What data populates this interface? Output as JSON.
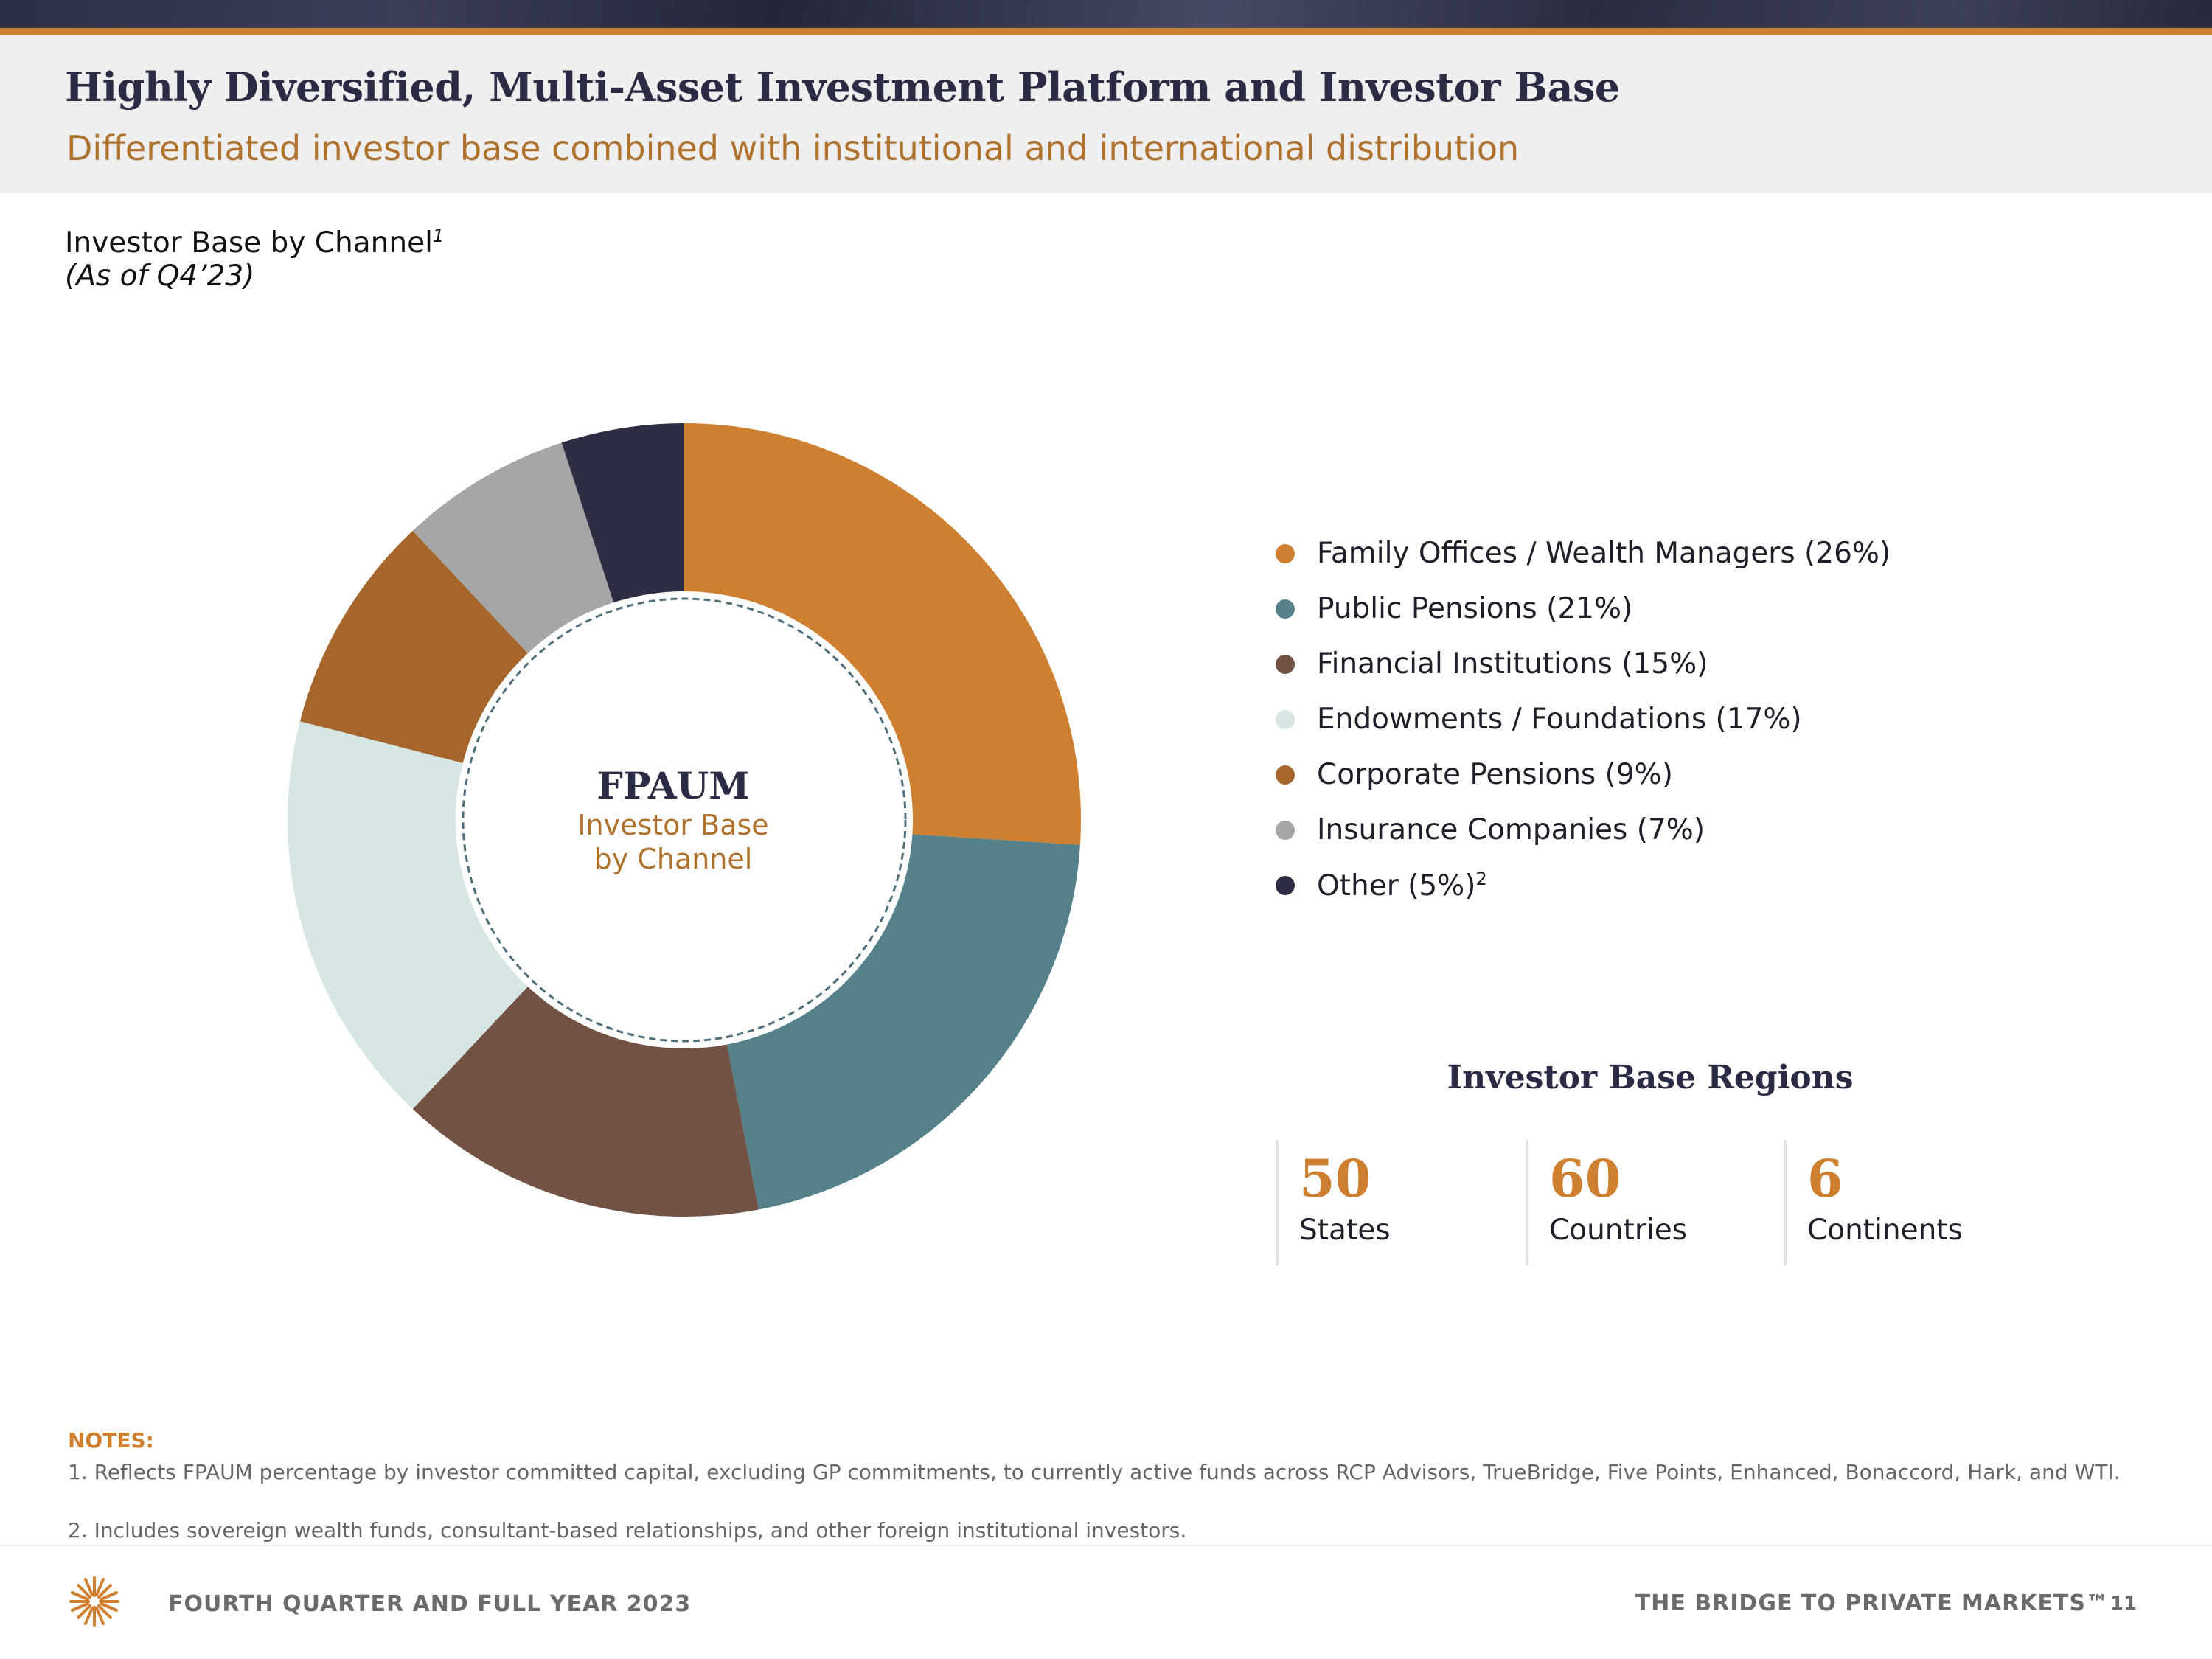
{
  "header": {
    "title": "Highly Diversified, Multi-Asset Investment Platform and Investor Base",
    "subtitle": "Differentiated investor base combined with institutional and international distribution"
  },
  "chart_section": {
    "heading": "Investor Base by Channel",
    "heading_footnote": "1",
    "as_of": "(As of Q4’23)"
  },
  "chart_data": {
    "type": "pie",
    "variant": "donut",
    "center_title": "FPAUM",
    "center_subtitle_line1": "Investor Base",
    "center_subtitle_line2": "by Channel",
    "slices": [
      {
        "label": "Family Offices / Wealth Managers (26%)",
        "value": 26,
        "color": "#cf7f30"
      },
      {
        "label": "Public Pensions (21%)",
        "value": 21,
        "color": "#55818b"
      },
      {
        "label": "Financial Institutions (15%)",
        "value": 15,
        "color": "#725243"
      },
      {
        "label": "Endowments / Foundations (17%)",
        "value": 17,
        "color": "#d6e6e5"
      },
      {
        "label": "Corporate Pensions (9%)",
        "value": 9,
        "color": "#a6652a"
      },
      {
        "label": "Insurance Companies (7%)",
        "value": 7,
        "color": "#a6a6a6"
      },
      {
        "label": "Other (5%)",
        "value": 5,
        "color": "#2d2d43",
        "footnote": "2"
      }
    ],
    "legend_position": "right"
  },
  "regions": {
    "title": "Investor Base Regions",
    "items": [
      {
        "number": "50",
        "label": "States"
      },
      {
        "number": "60",
        "label": "Countries"
      },
      {
        "number": "6",
        "label": "Continents"
      }
    ]
  },
  "notes": {
    "title": "NOTES:",
    "items": [
      "1. Reflects FPAUM percentage by investor committed capital, excluding GP commitments, to currently active funds across RCP Advisors, TrueBridge, Five Points, Enhanced, Bonaccord, Hark, and WTI.",
      "2. Includes sovereign wealth funds, consultant-based relationships, and other foreign institutional investors."
    ]
  },
  "footer": {
    "left": "FOURTH QUARTER AND FULL YEAR 2023",
    "right": "THE BRIDGE TO PRIVATE MARKETS™",
    "page": "11"
  },
  "colors": {
    "accent_orange": "#cf7f30",
    "navy": "#2a2b45",
    "subtitle_orange": "#b0712a"
  }
}
